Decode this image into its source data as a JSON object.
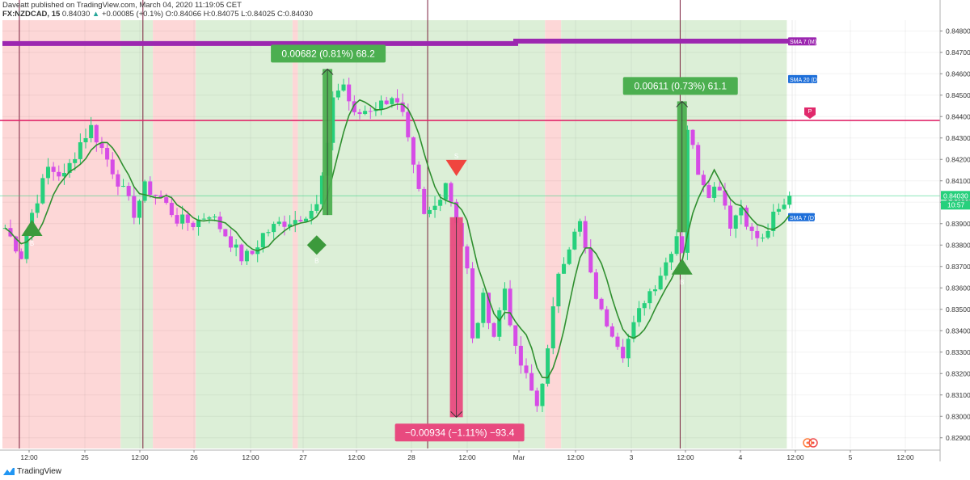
{
  "header": {
    "line1": "Daveatt published on TradingView.com, March 04, 2020 11:19:05 CET",
    "symbol": "FX:NZDCAD, 15",
    "last": "0.84030",
    "change": "+0.00085 (+0.1%)",
    "ohlc": "O:0.84066 H:0.84075 L:0.84025 C:0.84030"
  },
  "footer": {
    "brand": "TradingView"
  },
  "colors": {
    "bull_candle": "#26d07c",
    "bear_candle": "#d64ce6",
    "sma_line": "#2f8f2f",
    "red_zone": "#fdd7d7",
    "green_zone": "#dcefd7",
    "purple_band": "#9c27b0",
    "level_line": "#e0286b",
    "gain_label": "#4caf50",
    "loss_label": "#e84a7f"
  },
  "chart_data": {
    "type": "candlestick",
    "symbol": "FX:NZDCAD",
    "interval": "15",
    "x_tick_labels": [
      "12:00",
      "25",
      "12:00",
      "26",
      "12:00",
      "27",
      "12:00",
      "28",
      "12:00",
      "Mar",
      "12:00",
      "3",
      "12:00",
      "4",
      "12:00",
      "5",
      "12:00"
    ],
    "y_tick_labels": [
      "0.84800",
      "0.84700",
      "0.84600",
      "0.84500",
      "0.84400",
      "0.84300",
      "0.84200",
      "0.84100",
      "0.84000",
      "0.83900",
      "0.83800",
      "0.83700",
      "0.83600",
      "0.83500",
      "0.83400",
      "0.83300",
      "0.83200",
      "0.83100",
      "0.83000",
      "0.82900"
    ],
    "ylim": [
      0.8285,
      0.8485
    ],
    "last_price_label": "0.84030",
    "countdown_label": "10:57",
    "price_path": [
      {
        "x": 0,
        "y": 0.8388
      },
      {
        "x": 3,
        "y": 0.8375
      },
      {
        "x": 5,
        "y": 0.8395
      },
      {
        "x": 8,
        "y": 0.8416
      },
      {
        "x": 11,
        "y": 0.8412
      },
      {
        "x": 14,
        "y": 0.8428
      },
      {
        "x": 16,
        "y": 0.8435
      },
      {
        "x": 18,
        "y": 0.8425
      },
      {
        "x": 21,
        "y": 0.841
      },
      {
        "x": 24,
        "y": 0.8395
      },
      {
        "x": 26,
        "y": 0.8407
      },
      {
        "x": 29,
        "y": 0.8402
      },
      {
        "x": 32,
        "y": 0.8392
      },
      {
        "x": 35,
        "y": 0.839
      },
      {
        "x": 38,
        "y": 0.8395
      },
      {
        "x": 41,
        "y": 0.8385
      },
      {
        "x": 44,
        "y": 0.8374
      },
      {
        "x": 46,
        "y": 0.8376
      },
      {
        "x": 48,
        "y": 0.8385
      },
      {
        "x": 51,
        "y": 0.839
      },
      {
        "x": 54,
        "y": 0.8392
      },
      {
        "x": 56,
        "y": 0.8395
      },
      {
        "x": 58,
        "y": 0.8398
      },
      {
        "x": 60,
        "y": 0.8425
      },
      {
        "x": 61,
        "y": 0.845
      },
      {
        "x": 63,
        "y": 0.8455
      },
      {
        "x": 65,
        "y": 0.844
      },
      {
        "x": 67,
        "y": 0.8443
      },
      {
        "x": 70,
        "y": 0.8446
      },
      {
        "x": 72,
        "y": 0.845
      },
      {
        "x": 74,
        "y": 0.844
      },
      {
        "x": 76,
        "y": 0.8415
      },
      {
        "x": 78,
        "y": 0.8393
      },
      {
        "x": 80,
        "y": 0.8398
      },
      {
        "x": 82,
        "y": 0.841
      },
      {
        "x": 84,
        "y": 0.8392
      },
      {
        "x": 86,
        "y": 0.8368
      },
      {
        "x": 87,
        "y": 0.8335
      },
      {
        "x": 89,
        "y": 0.8355
      },
      {
        "x": 91,
        "y": 0.8338
      },
      {
        "x": 93,
        "y": 0.836
      },
      {
        "x": 95,
        "y": 0.833
      },
      {
        "x": 97,
        "y": 0.8318
      },
      {
        "x": 99,
        "y": 0.8305
      },
      {
        "x": 101,
        "y": 0.833
      },
      {
        "x": 103,
        "y": 0.8368
      },
      {
        "x": 105,
        "y": 0.838
      },
      {
        "x": 107,
        "y": 0.839
      },
      {
        "x": 109,
        "y": 0.8365
      },
      {
        "x": 111,
        "y": 0.8348
      },
      {
        "x": 113,
        "y": 0.834
      },
      {
        "x": 115,
        "y": 0.833
      },
      {
        "x": 117,
        "y": 0.8342
      },
      {
        "x": 119,
        "y": 0.8355
      },
      {
        "x": 121,
        "y": 0.8362
      },
      {
        "x": 123,
        "y": 0.8372
      },
      {
        "x": 125,
        "y": 0.8385
      },
      {
        "x": 126,
        "y": 0.8378
      },
      {
        "x": 127,
        "y": 0.8435
      },
      {
        "x": 129,
        "y": 0.8415
      },
      {
        "x": 131,
        "y": 0.8405
      },
      {
        "x": 133,
        "y": 0.8408
      },
      {
        "x": 135,
        "y": 0.839
      },
      {
        "x": 137,
        "y": 0.8398
      },
      {
        "x": 139,
        "y": 0.8385
      },
      {
        "x": 141,
        "y": 0.8382
      },
      {
        "x": 143,
        "y": 0.8393
      },
      {
        "x": 145,
        "y": 0.8398
      },
      {
        "x": 146,
        "y": 0.8403
      }
    ],
    "sma_levels": [
      {
        "label": "SMA 7 (M)",
        "value": 0.84745
      },
      {
        "label": "SMA 20 (D)",
        "value": 0.84575
      },
      {
        "label": "SMA 7 (D)",
        "value": 0.8393
      }
    ],
    "horizontal_level": {
      "value": 0.84382,
      "marker": "P"
    },
    "zones": [
      {
        "type": "bear",
        "from": 0,
        "to": 22
      },
      {
        "type": "bull",
        "from": 22,
        "to": 28
      },
      {
        "type": "bear",
        "from": 28,
        "to": 36
      },
      {
        "type": "bull",
        "from": 36,
        "to": 54
      },
      {
        "type": "bear",
        "from": 54,
        "to": 55
      },
      {
        "type": "bull",
        "from": 55,
        "to": 101
      },
      {
        "type": "bear",
        "from": 101,
        "to": 104
      },
      {
        "type": "bull",
        "from": 104,
        "to": 146
      }
    ],
    "trades": [
      {
        "side": "long",
        "entry_x": 60,
        "entry": 0.8394,
        "exit": 0.84622,
        "label": "0.00682 (0.81%) 68.2"
      },
      {
        "side": "short",
        "entry_x": 84,
        "entry": 0.8393,
        "exit": 0.82996,
        "label": "−0.00934 (−1.11%) −93.4"
      },
      {
        "side": "long",
        "entry_x": 126,
        "entry": 0.8386,
        "exit": 0.84471,
        "label": "0.00611 (0.73%) 61.1"
      }
    ],
    "signals": [
      {
        "type": "buy",
        "x": 5,
        "y": 0.8388,
        "label": "B"
      },
      {
        "type": "buy",
        "x": 58,
        "y": 0.838,
        "label": "B"
      },
      {
        "type": "sell",
        "x": 84,
        "y": 0.8416,
        "label": "S"
      },
      {
        "type": "buy",
        "x": 126,
        "y": 0.837,
        "label": "B"
      }
    ],
    "session_lines_x": [
      3,
      26,
      79,
      126
    ]
  }
}
